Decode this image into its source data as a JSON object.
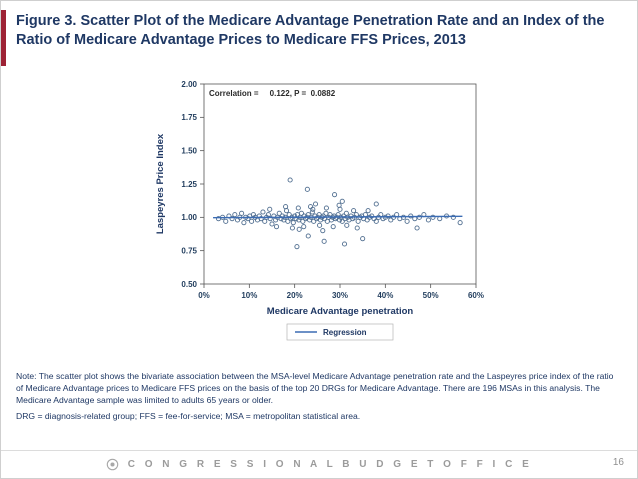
{
  "slide": {
    "title": "Figure 3. Scatter Plot of the Medicare Advantage Penetration Rate and an Index of the Ratio of Medicare Advantage Prices to Medicare FFS Prices, 2013",
    "note_line1": "Note: The scatter plot shows the bivariate association between the MSA-level Medicare Advantage penetration rate and the Laspeyres price index of the ratio of Medicare Advantage prices to Medicare FFS prices on the basis of the top 20 DRGs for Medicare Advantage. There are 196 MSAs in this analysis. The Medicare Advantage sample was limited to adults 65 years or older.",
    "note_line2": "DRG = diagnosis-related group; FFS = fee-for-service; MSA = metropolitan statistical area.",
    "footer_text": "C O N G R E S S I O N A L   B U D G E T   O F F I C E",
    "page_number": "16",
    "accent_color": "#9d2235",
    "title_color": "#1f3864"
  },
  "chart_data": {
    "type": "scatter",
    "title": "Figure 3. Scatter Plot of the Medicare Advantage Penetration Rate and an Index of the Ratio of Medicare Advantage Prices to Medicare FFS Prices, 2013",
    "annotation": "Correlation =     0.122, P =  0.0882",
    "correlation": 0.122,
    "p_value": 0.0882,
    "xlabel": "Medicare Advantage penetration",
    "ylabel": "Laspeyres Price Index",
    "x_ticks": [
      "0%",
      "10%",
      "20%",
      "30%",
      "40%",
      "50%",
      "60%"
    ],
    "x_tick_values": [
      0,
      10,
      20,
      30,
      40,
      50,
      60
    ],
    "y_ticks": [
      "0.50",
      "0.75",
      "1.00",
      "1.25",
      "1.50",
      "1.75",
      "2.00"
    ],
    "y_tick_values": [
      0.5,
      0.75,
      1.0,
      1.25,
      1.5,
      1.75,
      2.0
    ],
    "xlim": [
      0,
      60
    ],
    "ylim": [
      0.5,
      2.0
    ],
    "grid": false,
    "legend_position": "bottom",
    "legend": {
      "label": "Regression",
      "line_color": "#3b6cb4"
    },
    "point_color": "#4f6d8f",
    "regression": {
      "x": [
        2,
        57
      ],
      "y": [
        0.997,
        1.008
      ]
    },
    "points": [
      [
        3.2,
        0.99
      ],
      [
        4.1,
        1.0
      ],
      [
        4.8,
        0.97
      ],
      [
        5.5,
        1.01
      ],
      [
        6.2,
        0.99
      ],
      [
        6.8,
        1.02
      ],
      [
        7.4,
        0.98
      ],
      [
        7.9,
        1.0
      ],
      [
        8.3,
        1.03
      ],
      [
        8.8,
        0.96
      ],
      [
        9.2,
        1.0
      ],
      [
        9.7,
        0.99
      ],
      [
        10.1,
        1.01
      ],
      [
        10.5,
        0.97
      ],
      [
        10.9,
        1.02
      ],
      [
        11.3,
        1.0
      ],
      [
        11.8,
        0.98
      ],
      [
        12.2,
        1.01
      ],
      [
        12.6,
        0.99
      ],
      [
        13.0,
        1.04
      ],
      [
        13.4,
        0.97
      ],
      [
        13.8,
        1.0
      ],
      [
        14.2,
        1.02
      ],
      [
        14.6,
        0.99
      ],
      [
        15.0,
        0.95
      ],
      [
        15.4,
        1.01
      ],
      [
        15.8,
        0.98
      ],
      [
        16.2,
        1.0
      ],
      [
        16.6,
        1.03
      ],
      [
        17.0,
        0.99
      ],
      [
        17.3,
        1.01
      ],
      [
        17.6,
        0.98
      ],
      [
        17.9,
        1.0
      ],
      [
        18.2,
        1.05
      ],
      [
        18.5,
        0.97
      ],
      [
        18.8,
        1.02
      ],
      [
        19.1,
        0.99
      ],
      [
        19.4,
        1.0
      ],
      [
        19.7,
        0.96
      ],
      [
        20.0,
        1.01
      ],
      [
        20.3,
        0.99
      ],
      [
        20.6,
        1.02
      ],
      [
        20.9,
        0.98
      ],
      [
        21.2,
        1.0
      ],
      [
        21.5,
        1.03
      ],
      [
        21.8,
        0.97
      ],
      [
        22.1,
        1.01
      ],
      [
        22.4,
        0.99
      ],
      [
        22.7,
        1.0
      ],
      [
        23.0,
        1.02
      ],
      [
        23.3,
        0.98
      ],
      [
        23.6,
        1.0
      ],
      [
        23.9,
        1.04
      ],
      [
        24.2,
        0.97
      ],
      [
        24.5,
        1.01
      ],
      [
        24.8,
        0.99
      ],
      [
        25.1,
        1.0
      ],
      [
        25.4,
        1.02
      ],
      [
        25.7,
        0.98
      ],
      [
        26.0,
        1.0
      ],
      [
        26.3,
        1.01
      ],
      [
        26.6,
        0.99
      ],
      [
        26.9,
        1.03
      ],
      [
        27.2,
        0.97
      ],
      [
        27.5,
        1.0
      ],
      [
        27.8,
        1.02
      ],
      [
        28.1,
        0.98
      ],
      [
        28.4,
        1.0
      ],
      [
        28.7,
        1.01
      ],
      [
        29.0,
        0.99
      ],
      [
        29.3,
        1.0
      ],
      [
        29.6,
        1.02
      ],
      [
        29.9,
        0.98
      ],
      [
        30.2,
        1.0
      ],
      [
        30.5,
        0.97
      ],
      [
        30.8,
        1.01
      ],
      [
        31.1,
        0.99
      ],
      [
        31.4,
        1.03
      ],
      [
        31.7,
        1.0
      ],
      [
        32.0,
        0.98
      ],
      [
        32.4,
        1.01
      ],
      [
        32.8,
        0.99
      ],
      [
        33.2,
        1.0
      ],
      [
        33.6,
        1.02
      ],
      [
        34.0,
        0.97
      ],
      [
        34.4,
        1.0
      ],
      [
        34.8,
        1.01
      ],
      [
        35.2,
        0.99
      ],
      [
        35.6,
        1.02
      ],
      [
        36.0,
        0.98
      ],
      [
        36.5,
        1.0
      ],
      [
        37.0,
        1.01
      ],
      [
        37.5,
        0.99
      ],
      [
        38.0,
        0.97
      ],
      [
        38.5,
        1.0
      ],
      [
        39.0,
        1.02
      ],
      [
        39.5,
        0.99
      ],
      [
        40.0,
        1.0
      ],
      [
        40.6,
        1.01
      ],
      [
        41.2,
        0.98
      ],
      [
        41.8,
        1.0
      ],
      [
        42.5,
        1.02
      ],
      [
        43.2,
        0.99
      ],
      [
        44.0,
        1.0
      ],
      [
        44.8,
        0.97
      ],
      [
        45.6,
        1.01
      ],
      [
        46.5,
        0.99
      ],
      [
        47.5,
        1.0
      ],
      [
        48.5,
        1.02
      ],
      [
        49.5,
        0.98
      ],
      [
        50.5,
        1.0
      ],
      [
        52.0,
        0.99
      ],
      [
        53.5,
        1.01
      ],
      [
        55.0,
        1.0
      ],
      [
        56.5,
        0.96
      ],
      [
        19.0,
        1.28
      ],
      [
        22.8,
        1.21
      ],
      [
        28.8,
        1.17
      ],
      [
        30.5,
        1.12
      ],
      [
        38.0,
        1.1
      ],
      [
        20.5,
        0.78
      ],
      [
        26.5,
        0.82
      ],
      [
        31.0,
        0.8
      ],
      [
        35.0,
        0.84
      ],
      [
        23.0,
        0.86
      ],
      [
        47.0,
        0.92
      ],
      [
        18.0,
        1.08
      ],
      [
        19.5,
        0.92
      ],
      [
        20.8,
        1.07
      ],
      [
        22.0,
        0.93
      ],
      [
        24.0,
        1.06
      ],
      [
        25.5,
        0.94
      ],
      [
        27.0,
        1.07
      ],
      [
        28.5,
        0.93
      ],
      [
        30.0,
        1.06
      ],
      [
        31.5,
        0.94
      ],
      [
        33.0,
        1.05
      ],
      [
        24.6,
        1.1
      ],
      [
        26.2,
        0.9
      ],
      [
        29.8,
        1.09
      ],
      [
        21.0,
        0.91
      ],
      [
        23.5,
        1.08
      ],
      [
        33.8,
        0.92
      ],
      [
        36.2,
        1.05
      ],
      [
        16.0,
        0.93
      ],
      [
        14.5,
        1.06
      ]
    ]
  }
}
